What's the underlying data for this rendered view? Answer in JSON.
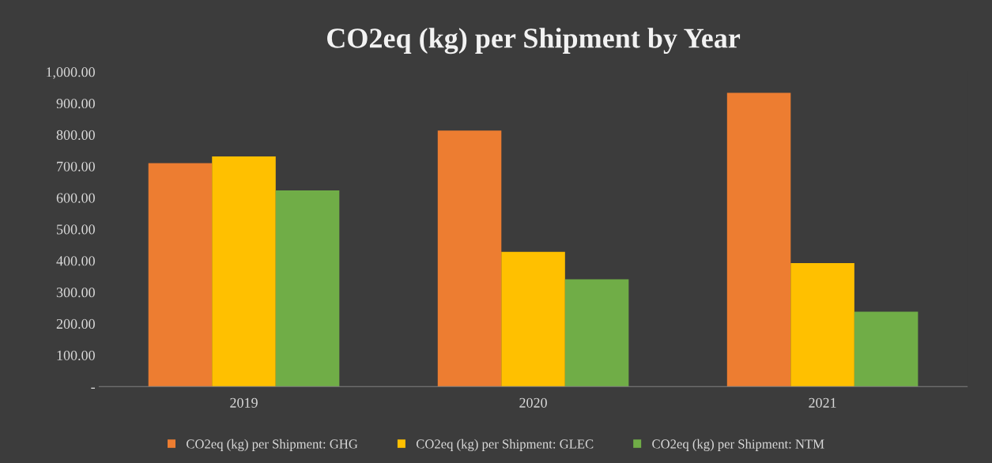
{
  "chart_data": {
    "type": "bar",
    "title": "CO2eq (kg) per Shipment by Year",
    "categories": [
      "2019",
      "2020",
      "2021"
    ],
    "series": [
      {
        "name": "CO2eq (kg) per Shipment: GHG",
        "color": "#ed7d31",
        "values": [
          710,
          813,
          933
        ]
      },
      {
        "name": "CO2eq (kg) per Shipment: GLEC",
        "color": "#ffc000",
        "values": [
          731,
          428,
          392
        ]
      },
      {
        "name": "CO2eq (kg) per Shipment: NTM",
        "color": "#70ad47",
        "values": [
          623,
          341,
          238
        ]
      }
    ],
    "ylim": [
      0,
      1000
    ],
    "yticks": [
      {
        "value": 0,
        "label": "-"
      },
      {
        "value": 100,
        "label": "100.00"
      },
      {
        "value": 200,
        "label": "200.00"
      },
      {
        "value": 300,
        "label": "300.00"
      },
      {
        "value": 400,
        "label": "400.00"
      },
      {
        "value": 500,
        "label": "500.00"
      },
      {
        "value": 600,
        "label": "600.00"
      },
      {
        "value": 700,
        "label": "700.00"
      },
      {
        "value": 800,
        "label": "800.00"
      },
      {
        "value": 900,
        "label": "900.00"
      },
      {
        "value": 1000,
        "label": "1,000.00"
      }
    ],
    "grid": false,
    "legend": "bottom"
  }
}
